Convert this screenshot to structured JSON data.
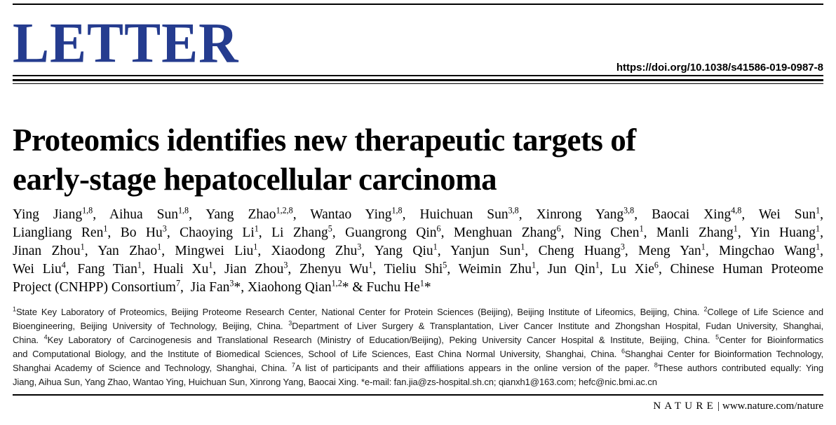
{
  "colors": {
    "accent_blue": "#253c8f"
  },
  "masthead": {
    "category": "LETTER",
    "doi": "https://doi.org/10.1038/s41586-019-0987-8"
  },
  "title": {
    "line1": "Proteomics identifies new therapeutic targets of",
    "line2": "early-stage hepatocellular carcinoma"
  },
  "author_lines": [
    [
      [
        "t",
        "Ying Jiang"
      ],
      [
        "s",
        "1,8"
      ],
      [
        "t",
        ", Aihua Sun"
      ],
      [
        "s",
        "1,8"
      ],
      [
        "t",
        ", Yang Zhao"
      ],
      [
        "s",
        "1,2,8"
      ],
      [
        "t",
        ", Wantao Ying"
      ],
      [
        "s",
        "1,8"
      ],
      [
        "t",
        ", Huichuan Sun"
      ],
      [
        "s",
        "3,8"
      ],
      [
        "t",
        ", Xinrong Yang"
      ],
      [
        "s",
        "3,8"
      ],
      [
        "t",
        ", Baocai Xing"
      ],
      [
        "s",
        "4,8"
      ],
      [
        "t",
        ", Wei Sun"
      ],
      [
        "s",
        "1"
      ],
      [
        "t",
        ","
      ]
    ],
    [
      [
        "t",
        "Liangliang Ren"
      ],
      [
        "s",
        "1"
      ],
      [
        "t",
        ", Bo Hu"
      ],
      [
        "s",
        "3"
      ],
      [
        "t",
        ", Chaoying Li"
      ],
      [
        "s",
        "1"
      ],
      [
        "t",
        ", Li Zhang"
      ],
      [
        "s",
        "5"
      ],
      [
        "t",
        ", Guangrong Qin"
      ],
      [
        "s",
        "6"
      ],
      [
        "t",
        ", Menghuan Zhang"
      ],
      [
        "s",
        "6"
      ],
      [
        "t",
        ", Ning Chen"
      ],
      [
        "s",
        "1"
      ],
      [
        "t",
        ", Manli Zhang"
      ],
      [
        "s",
        "1"
      ],
      [
        "t",
        ", Yin Huang"
      ],
      [
        "s",
        "1"
      ],
      [
        "t",
        ","
      ]
    ],
    [
      [
        "t",
        "Jinan Zhou"
      ],
      [
        "s",
        "1"
      ],
      [
        "t",
        ", Yan Zhao"
      ],
      [
        "s",
        "1"
      ],
      [
        "t",
        ", Mingwei Liu"
      ],
      [
        "s",
        "1"
      ],
      [
        "t",
        ", Xiaodong Zhu"
      ],
      [
        "s",
        "3"
      ],
      [
        "t",
        ", Yang Qiu"
      ],
      [
        "s",
        "1"
      ],
      [
        "t",
        ", Yanjun Sun"
      ],
      [
        "s",
        "1"
      ],
      [
        "t",
        ", Cheng Huang"
      ],
      [
        "s",
        "3"
      ],
      [
        "t",
        ", Meng Yan"
      ],
      [
        "s",
        "1"
      ],
      [
        "t",
        ", Mingchao Wang"
      ],
      [
        "s",
        "1"
      ],
      [
        "t",
        ","
      ]
    ],
    [
      [
        "t",
        "Wei Liu"
      ],
      [
        "s",
        "4"
      ],
      [
        "t",
        ", Fang Tian"
      ],
      [
        "s",
        "1"
      ],
      [
        "t",
        ", Huali Xu"
      ],
      [
        "s",
        "1"
      ],
      [
        "t",
        ", Jian Zhou"
      ],
      [
        "s",
        "3"
      ],
      [
        "t",
        ", Zhenyu Wu"
      ],
      [
        "s",
        "1"
      ],
      [
        "t",
        ", Tieliu Shi"
      ],
      [
        "s",
        "5"
      ],
      [
        "t",
        ", Weimin Zhu"
      ],
      [
        "s",
        "1"
      ],
      [
        "t",
        ", Jun Qin"
      ],
      [
        "s",
        "1"
      ],
      [
        "t",
        ", Lu Xie"
      ],
      [
        "s",
        "6"
      ],
      [
        "t",
        ", Chinese Human Proteome"
      ]
    ],
    [
      [
        "t",
        "Project (CNHPP) Consortium"
      ],
      [
        "s",
        "7"
      ],
      [
        "t",
        ",  Jia Fan"
      ],
      [
        "s",
        "3"
      ],
      [
        "t",
        "*, Xiaohong Qian"
      ],
      [
        "s",
        "1,2"
      ],
      [
        "t",
        "* & Fuchu He"
      ],
      [
        "s",
        "1"
      ],
      [
        "t",
        "*"
      ]
    ]
  ],
  "affiliation_lines": [
    [
      [
        "s",
        "1"
      ],
      [
        "t",
        "State Key Laboratory of Proteomics, Beijing Proteome Research Center, National Center for Protein Sciences (Beijing), Beijing Institute of Lifeomics, Beijing, China. "
      ],
      [
        "s",
        "2"
      ],
      [
        "t",
        "College of Life Science and"
      ]
    ],
    [
      [
        "t",
        "Bioengineering, Beijing University of Technology, Beijing, China. "
      ],
      [
        "s",
        "3"
      ],
      [
        "t",
        "Department of Liver Surgery & Transplantation, Liver Cancer Institute and Zhongshan Hospital, Fudan University, Shanghai,"
      ]
    ],
    [
      [
        "t",
        "China. "
      ],
      [
        "s",
        "4"
      ],
      [
        "t",
        "Key Laboratory of Carcinogenesis and Translational Research (Ministry of Education/Beijing), Peking University Cancer Hospital & Institute, Beijing, China. "
      ],
      [
        "s",
        "5"
      ],
      [
        "t",
        "Center for Bioinformatics"
      ]
    ],
    [
      [
        "t",
        "and Computational Biology, and the Institute of Biomedical Sciences, School of Life Sciences, East China Normal University, Shanghai, China. "
      ],
      [
        "s",
        "6"
      ],
      [
        "t",
        "Shanghai Center for Bioinformation Technology,"
      ]
    ],
    [
      [
        "t",
        "Shanghai Academy of Science and Technology, Shanghai, China. "
      ],
      [
        "s",
        "7"
      ],
      [
        "t",
        "A list of participants and their affiliations appears in the online version of the paper. "
      ],
      [
        "s",
        "8"
      ],
      [
        "t",
        "These authors contributed equally: Ying"
      ]
    ],
    [
      [
        "t",
        "Jiang, Aihua Sun, Yang Zhao, Wantao Ying, Huichuan Sun, Xinrong Yang, Baocai Xing. *e-mail: fan.jia@zs-hospital.sh.cn; qianxh1@163.com; hefc@nic.bmi.ac.cn"
      ]
    ]
  ],
  "footer": {
    "journal": "NATURE",
    "separator": "|",
    "url": "www.nature.com/nature"
  }
}
